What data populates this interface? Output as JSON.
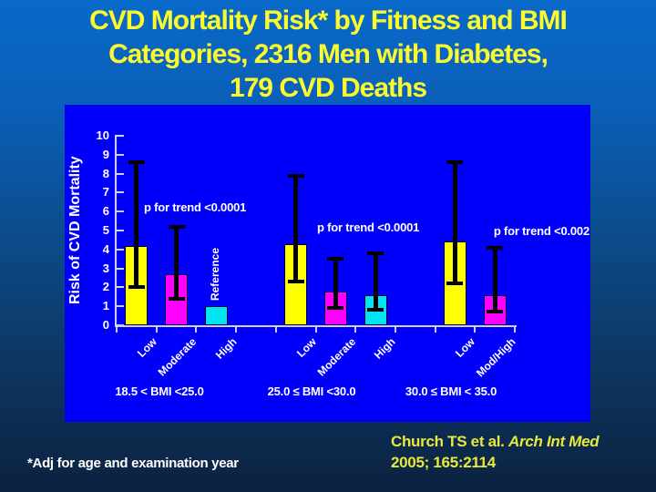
{
  "slide": {
    "title_lines": [
      "CVD Mortality Risk* by Fitness and BMI",
      "Categories, 2316 Men with Diabetes,",
      "179 CVD Deaths"
    ],
    "footnote": "*Adj for age and examination year",
    "citation": {
      "authors": "Church TS et al. ",
      "journal": "Arch Int Med",
      "ref": "2005; 165:2114"
    }
  },
  "colors": {
    "background_top": "#0969C9",
    "background_bottom": "#0C2240",
    "plot_background": "#0000FA",
    "title_text": "#FCFC2C",
    "citation_text": "#E9E93B",
    "chart_text": "#FFFFFF",
    "axis": "#CFCFF2",
    "error_bar": "#000000",
    "bar_low": "#FFFF00",
    "bar_moderate": "#FF00FF",
    "bar_high": "#00E4F4"
  },
  "chart_data": {
    "type": "bar",
    "title": "",
    "xlabel": "",
    "ylabel": "Risk of CVD Mortality",
    "ylim": [
      0,
      10
    ],
    "ytick_step": 1,
    "grid": false,
    "legend": "none",
    "groups": [
      {
        "bmi_label": "18.5 < BMI <25.0",
        "p_trend_label": "p for trend <0.0001",
        "bars": [
          {
            "category": "Low",
            "value": 4.2,
            "ci": [
              2.0,
              8.6
            ],
            "color_key": "bar_low"
          },
          {
            "category": "Moderate",
            "value": 2.7,
            "ci": [
              1.4,
              5.2
            ],
            "color_key": "bar_moderate"
          },
          {
            "category": "High",
            "value": 1.0,
            "ci": null,
            "annotation": "Reference",
            "color_key": "bar_high"
          }
        ]
      },
      {
        "bmi_label": "25.0 ≤ BMI <30.0",
        "p_trend_label": "p for trend <0.0001",
        "bars": [
          {
            "category": "Low",
            "value": 4.3,
            "ci": [
              2.3,
              7.9
            ],
            "color_key": "bar_low"
          },
          {
            "category": "Moderate",
            "value": 1.8,
            "ci": [
              0.9,
              3.5
            ],
            "color_key": "bar_moderate"
          },
          {
            "category": "High",
            "value": 1.6,
            "ci": [
              0.8,
              3.8
            ],
            "color_key": "bar_high"
          }
        ]
      },
      {
        "bmi_label": "30.0 ≤ BMI < 35.0",
        "p_trend_label": "p for trend <0.002",
        "bars": [
          {
            "category": "Low",
            "value": 4.4,
            "ci": [
              2.2,
              8.6
            ],
            "color_key": "bar_low"
          },
          {
            "category": "Mod/High",
            "value": 1.6,
            "ci": [
              0.7,
              4.1
            ],
            "color_key": "bar_moderate"
          }
        ]
      }
    ]
  }
}
